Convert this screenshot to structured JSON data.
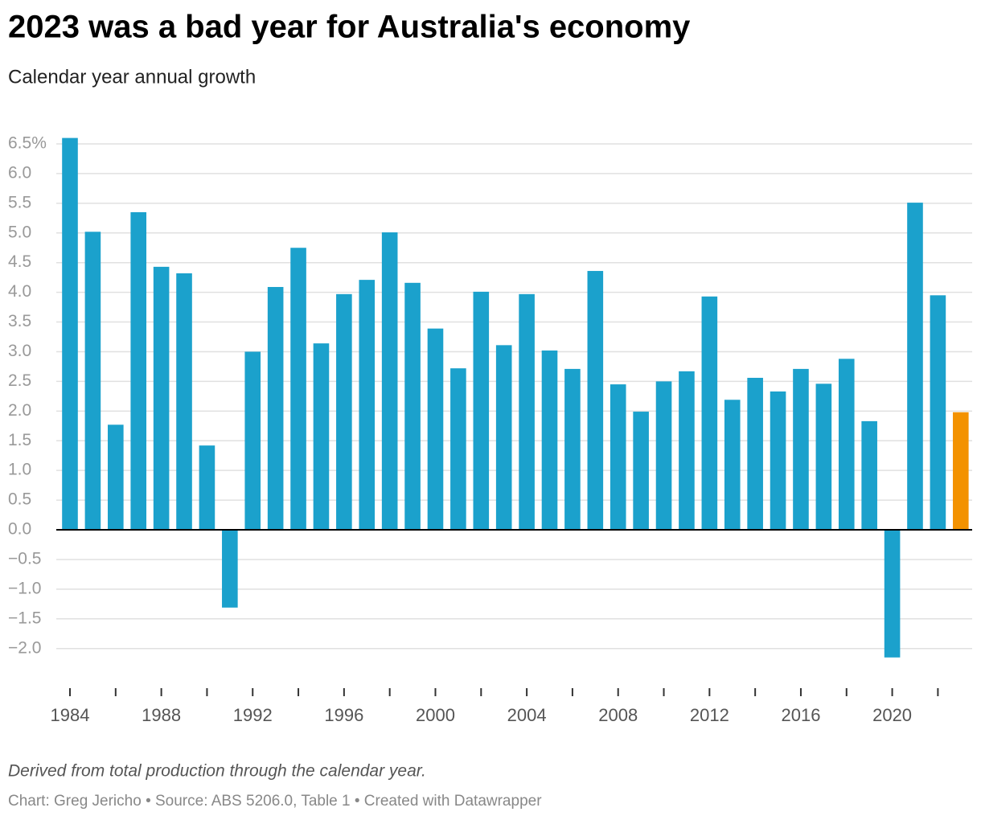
{
  "chart_data": {
    "type": "bar",
    "title": "2023 was a bad year for Australia's economy",
    "subtitle": "Calendar year annual growth",
    "note": "Derived from total production through the calendar year.",
    "source": "Chart: Greg Jericho • Source: ABS 5206.0, Table 1 • Created with Datawrapper",
    "categories": [
      "1984",
      null,
      null,
      null,
      "1988",
      null,
      null,
      null,
      "1992",
      null,
      null,
      null,
      "1996",
      null,
      null,
      null,
      "2000",
      null,
      null,
      null,
      "2004",
      null,
      null,
      null,
      "2008",
      null,
      null,
      null,
      "2012",
      null,
      null,
      null,
      "2016",
      null,
      null,
      null,
      "2020",
      null,
      null,
      null
    ],
    "values": [
      6.6,
      5.02,
      1.77,
      5.35,
      4.43,
      4.32,
      1.42,
      -1.31,
      3.0,
      4.09,
      4.75,
      3.14,
      3.97,
      4.21,
      5.01,
      4.16,
      3.39,
      2.72,
      4.01,
      3.11,
      3.97,
      3.02,
      2.71,
      4.36,
      2.45,
      1.99,
      2.5,
      2.67,
      3.93,
      2.19,
      2.56,
      2.33,
      2.71,
      2.46,
      2.88,
      1.83,
      -2.15,
      5.51,
      3.95,
      1.98
    ],
    "colors": [
      "#1ba1cc",
      "#1ba1cc",
      "#1ba1cc",
      "#1ba1cc",
      "#1ba1cc",
      "#1ba1cc",
      "#1ba1cc",
      "#1ba1cc",
      "#1ba1cc",
      "#1ba1cc",
      "#1ba1cc",
      "#1ba1cc",
      "#1ba1cc",
      "#1ba1cc",
      "#1ba1cc",
      "#1ba1cc",
      "#1ba1cc",
      "#1ba1cc",
      "#1ba1cc",
      "#1ba1cc",
      "#1ba1cc",
      "#1ba1cc",
      "#1ba1cc",
      "#1ba1cc",
      "#1ba1cc",
      "#1ba1cc",
      "#1ba1cc",
      "#1ba1cc",
      "#1ba1cc",
      "#1ba1cc",
      "#1ba1cc",
      "#1ba1cc",
      "#1ba1cc",
      "#1ba1cc",
      "#1ba1cc",
      "#1ba1cc",
      "#1ba1cc",
      "#1ba1cc",
      "#1ba1cc",
      "#f39200"
    ],
    "ylim": [
      -2.55,
      6.5
    ],
    "yticks": [
      {
        "value": 6.5,
        "label": "6.5%"
      },
      {
        "value": 6,
        "label": "6.0"
      },
      {
        "value": 5.5,
        "label": "5.5"
      },
      {
        "value": 5,
        "label": "5.0"
      },
      {
        "value": 4.5,
        "label": "4.5"
      },
      {
        "value": 4,
        "label": "4.0"
      },
      {
        "value": 3.5,
        "label": "3.5"
      },
      {
        "value": 3,
        "label": "3.0"
      },
      {
        "value": 2.5,
        "label": "2.5"
      },
      {
        "value": 2,
        "label": "2.0"
      },
      {
        "value": 1.5,
        "label": "1.5"
      },
      {
        "value": 1,
        "label": "1.0"
      },
      {
        "value": 0.5,
        "label": "0.5"
      },
      {
        "value": 0,
        "label": "0.0"
      },
      {
        "value": -0.5,
        "label": "−0.5"
      },
      {
        "value": -1,
        "label": "−1.0"
      },
      {
        "value": -1.5,
        "label": "−1.5"
      },
      {
        "value": -2,
        "label": "−2.0"
      }
    ],
    "grid": true
  }
}
